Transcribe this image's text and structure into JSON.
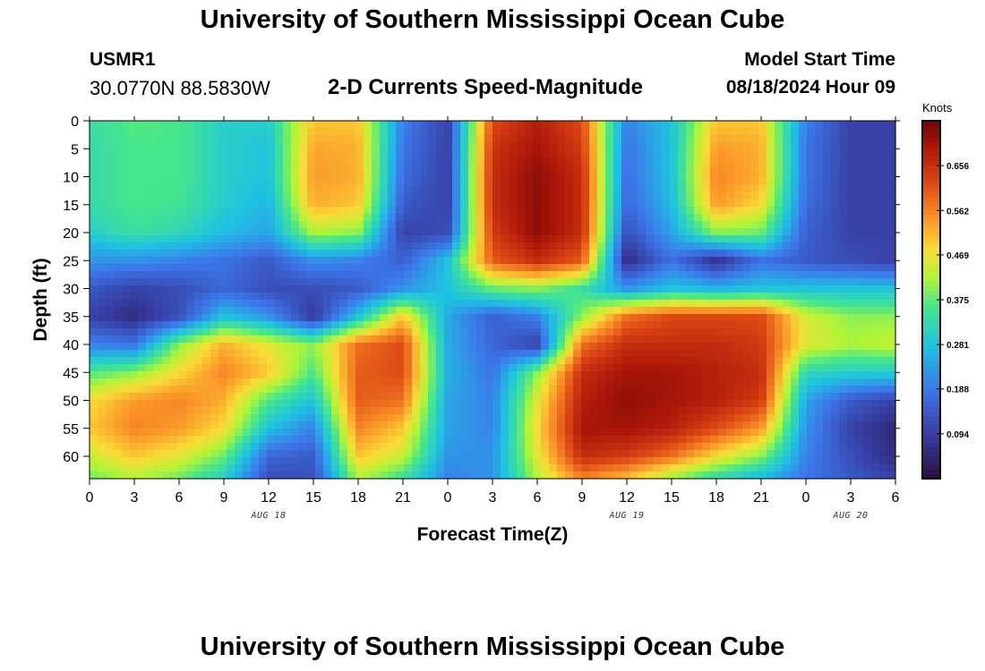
{
  "header": {
    "title": "University of Southern Mississippi Ocean Cube",
    "station_id": "USMR1",
    "coordinates": "30.0770N  88.5830W",
    "subtitle": "2-D Currents Speed-Magnitude",
    "model_start_label": "Model Start Time",
    "model_start_value": "08/18/2024 Hour 09"
  },
  "footer": {
    "title": "University of Southern Mississippi Ocean Cube"
  },
  "chart_data": {
    "type": "heatmap",
    "title": "2-D Currents Speed-Magnitude",
    "xlabel": "Forecast Time(Z)",
    "ylabel": "Depth (ft)",
    "x_tick_labels": [
      "0",
      "3",
      "6",
      "9",
      "12",
      "15",
      "18",
      "21",
      "0",
      "3",
      "6",
      "9",
      "12",
      "15",
      "18",
      "21",
      "0",
      "3",
      "6"
    ],
    "x_range_hours": [
      0,
      54
    ],
    "date_labels": [
      {
        "text": "AUG 18",
        "hour": 12
      },
      {
        "text": "AUG 19",
        "hour": 36
      },
      {
        "text": "AUG 20",
        "hour": 51
      }
    ],
    "y_ticks": [
      0,
      5,
      10,
      15,
      20,
      25,
      30,
      35,
      40,
      45,
      50,
      55,
      60
    ],
    "y_range": [
      0,
      64
    ],
    "colorbar": {
      "title": "Knots",
      "ticks": [
        0.094,
        0.188,
        0.281,
        0.375,
        0.469,
        0.562,
        0.656
      ],
      "range": [
        0.0,
        0.75
      ]
    },
    "hours": [
      0,
      3,
      6,
      9,
      12,
      15,
      18,
      21,
      24,
      27,
      30,
      33,
      36,
      39,
      42,
      45,
      48,
      51,
      54
    ],
    "depths": [
      0,
      5,
      10,
      15,
      20,
      25,
      30,
      35,
      40,
      45,
      50,
      55,
      60,
      64
    ],
    "values": [
      [
        0.34,
        0.37,
        0.36,
        0.3,
        0.3,
        0.5,
        0.5,
        0.2,
        0.1,
        0.62,
        0.68,
        0.62,
        0.2,
        0.28,
        0.5,
        0.5,
        0.2,
        0.1,
        0.1
      ],
      [
        0.33,
        0.36,
        0.36,
        0.3,
        0.28,
        0.53,
        0.52,
        0.18,
        0.1,
        0.65,
        0.7,
        0.64,
        0.18,
        0.28,
        0.54,
        0.52,
        0.18,
        0.1,
        0.1
      ],
      [
        0.33,
        0.36,
        0.36,
        0.3,
        0.28,
        0.54,
        0.52,
        0.17,
        0.1,
        0.66,
        0.72,
        0.66,
        0.17,
        0.28,
        0.56,
        0.52,
        0.18,
        0.1,
        0.1
      ],
      [
        0.33,
        0.36,
        0.35,
        0.3,
        0.26,
        0.52,
        0.5,
        0.14,
        0.1,
        0.66,
        0.72,
        0.66,
        0.16,
        0.27,
        0.54,
        0.48,
        0.17,
        0.1,
        0.1
      ],
      [
        0.3,
        0.34,
        0.32,
        0.27,
        0.24,
        0.42,
        0.4,
        0.1,
        0.12,
        0.64,
        0.72,
        0.66,
        0.12,
        0.24,
        0.4,
        0.38,
        0.15,
        0.1,
        0.1
      ],
      [
        0.22,
        0.22,
        0.2,
        0.18,
        0.14,
        0.22,
        0.2,
        0.15,
        0.28,
        0.6,
        0.66,
        0.6,
        0.06,
        0.18,
        0.07,
        0.18,
        0.14,
        0.12,
        0.1
      ],
      [
        0.14,
        0.1,
        0.12,
        0.16,
        0.12,
        0.12,
        0.14,
        0.22,
        0.28,
        0.38,
        0.4,
        0.34,
        0.22,
        0.28,
        0.26,
        0.28,
        0.28,
        0.28,
        0.28
      ],
      [
        0.1,
        0.06,
        0.12,
        0.28,
        0.22,
        0.08,
        0.28,
        0.5,
        0.25,
        0.15,
        0.2,
        0.4,
        0.58,
        0.62,
        0.62,
        0.62,
        0.45,
        0.4,
        0.4
      ],
      [
        0.2,
        0.18,
        0.4,
        0.52,
        0.46,
        0.4,
        0.58,
        0.62,
        0.25,
        0.16,
        0.1,
        0.58,
        0.66,
        0.66,
        0.66,
        0.64,
        0.46,
        0.42,
        0.44
      ],
      [
        0.36,
        0.4,
        0.48,
        0.56,
        0.5,
        0.36,
        0.6,
        0.62,
        0.26,
        0.18,
        0.4,
        0.66,
        0.7,
        0.7,
        0.68,
        0.66,
        0.32,
        0.3,
        0.3
      ],
      [
        0.48,
        0.54,
        0.56,
        0.52,
        0.36,
        0.28,
        0.6,
        0.58,
        0.24,
        0.2,
        0.46,
        0.68,
        0.72,
        0.7,
        0.68,
        0.64,
        0.24,
        0.14,
        0.1
      ],
      [
        0.5,
        0.56,
        0.54,
        0.48,
        0.28,
        0.2,
        0.56,
        0.5,
        0.24,
        0.2,
        0.48,
        0.7,
        0.7,
        0.68,
        0.62,
        0.54,
        0.22,
        0.1,
        0.05
      ],
      [
        0.44,
        0.5,
        0.46,
        0.38,
        0.16,
        0.14,
        0.5,
        0.44,
        0.22,
        0.22,
        0.46,
        0.66,
        0.64,
        0.58,
        0.48,
        0.4,
        0.2,
        0.12,
        0.06
      ],
      [
        0.38,
        0.42,
        0.38,
        0.3,
        0.12,
        0.12,
        0.42,
        0.34,
        0.2,
        0.22,
        0.42,
        0.56,
        0.5,
        0.4,
        0.32,
        0.26,
        0.18,
        0.14,
        0.1
      ]
    ]
  }
}
